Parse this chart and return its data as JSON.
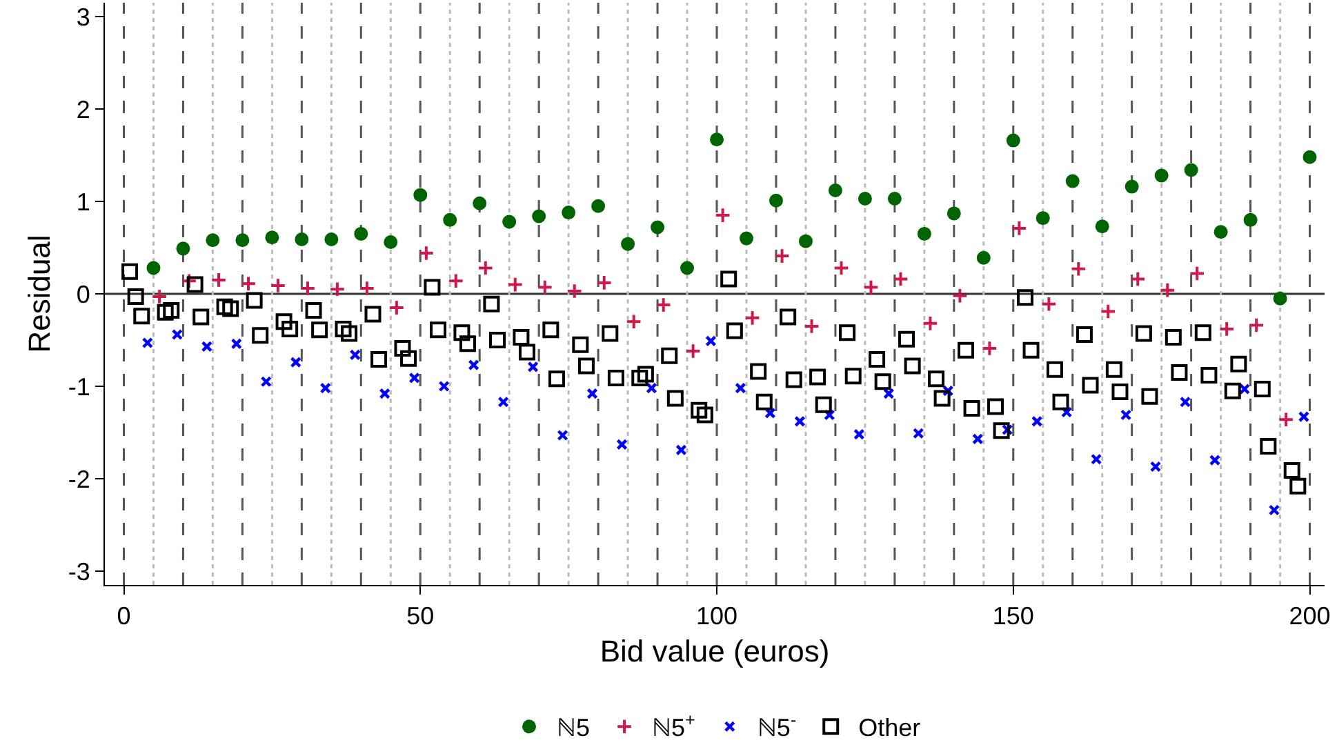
{
  "chart_data": {
    "type": "scatter",
    "xlabel": "Bid value (euros)",
    "ylabel": "Residual",
    "xlim": [
      -3.2,
      202.5
    ],
    "ylim": [
      -3.15,
      3.15
    ],
    "xticks": [
      0,
      50,
      100,
      150,
      200
    ],
    "yticks": [
      -3,
      -2,
      -1,
      0,
      1,
      2,
      3
    ],
    "grid": false,
    "legend": "bottom",
    "series": [
      {
        "name": "ℕ5",
        "color": "#006400",
        "marker": "circle",
        "x": [
          5,
          10,
          15,
          20,
          25,
          30,
          35,
          40,
          45,
          50,
          55,
          60,
          65,
          70,
          75,
          80,
          85,
          90,
          95,
          100,
          105,
          110,
          115,
          120,
          125,
          130,
          135,
          140,
          145,
          150,
          155,
          160,
          165,
          170,
          175,
          180,
          185,
          190,
          195,
          200
        ],
        "values": [
          0.28,
          0.49,
          0.58,
          0.58,
          0.61,
          0.59,
          0.59,
          0.65,
          0.56,
          1.07,
          0.8,
          0.98,
          0.78,
          0.84,
          0.88,
          0.95,
          0.54,
          0.72,
          0.28,
          1.67,
          0.6,
          1.01,
          0.57,
          1.12,
          1.03,
          1.03,
          0.65,
          0.87,
          0.39,
          1.66,
          0.82,
          1.22,
          0.73,
          1.16,
          1.28,
          1.34,
          0.67,
          0.8,
          -0.05,
          1.48
        ]
      },
      {
        "name": "ℕ5$^{+}$",
        "color": "#cc1a4a",
        "marker": "cross",
        "x": [
          6,
          11,
          16,
          21,
          26,
          31,
          36,
          41,
          46,
          51,
          56,
          61,
          66,
          71,
          76,
          81,
          86,
          91,
          96,
          101,
          106,
          111,
          116,
          121,
          126,
          131,
          136,
          141,
          146,
          151,
          156,
          161,
          166,
          171,
          176,
          181,
          186,
          191,
          196
        ],
        "values": [
          -0.03,
          0.14,
          0.15,
          0.11,
          0.09,
          0.06,
          0.05,
          0.06,
          -0.15,
          0.44,
          0.14,
          0.28,
          0.1,
          0.07,
          0.03,
          0.12,
          -0.3,
          -0.12,
          -0.62,
          0.85,
          -0.26,
          0.41,
          -0.35,
          0.28,
          0.07,
          0.16,
          -0.32,
          -0.02,
          -0.59,
          0.71,
          -0.11,
          0.27,
          -0.19,
          0.16,
          0.04,
          0.22,
          -0.38,
          -0.34,
          -1.36
        ]
      },
      {
        "name": "ℕ5$^{-}$",
        "color": "#0000ff",
        "marker": "x",
        "x": [
          4,
          9,
          14,
          19,
          24,
          29,
          34,
          39,
          44,
          49,
          54,
          59,
          64,
          69,
          74,
          79,
          84,
          89,
          94,
          99,
          104,
          109,
          114,
          119,
          124,
          129,
          134,
          139,
          144,
          149,
          154,
          159,
          164,
          169,
          174,
          179,
          184,
          189,
          194,
          199
        ],
        "values": [
          -0.53,
          -0.44,
          -0.57,
          -0.54,
          -0.95,
          -0.74,
          -1.02,
          -0.66,
          -1.08,
          -0.91,
          -1.0,
          -0.77,
          -1.17,
          -0.79,
          -1.53,
          -1.08,
          -1.63,
          -1.02,
          -1.69,
          -0.51,
          -1.02,
          -1.29,
          -1.38,
          -1.31,
          -1.52,
          -1.08,
          -1.51,
          -1.05,
          -1.57,
          -1.47,
          -1.38,
          -1.28,
          -1.79,
          -1.31,
          -1.87,
          -1.17,
          -1.8,
          -1.03,
          -2.34,
          -1.33
        ]
      },
      {
        "name": "Other",
        "color": "#000000",
        "marker": "square",
        "x": [
          1,
          2,
          3,
          7,
          8,
          12,
          13,
          17,
          18,
          22,
          23,
          27,
          28,
          32,
          33,
          37,
          38,
          42,
          43,
          47,
          48,
          52,
          53,
          57,
          58,
          62,
          63,
          67,
          68,
          72,
          73,
          77,
          78,
          82,
          83,
          87,
          88,
          92,
          93,
          97,
          98,
          102,
          103,
          107,
          108,
          112,
          113,
          117,
          118,
          122,
          123,
          127,
          128,
          132,
          133,
          137,
          138,
          142,
          143,
          147,
          148,
          152,
          153,
          157,
          158,
          162,
          163,
          167,
          168,
          172,
          173,
          177,
          178,
          182,
          183,
          187,
          188,
          192,
          193,
          197,
          198
        ],
        "values": [
          0.24,
          -0.03,
          -0.24,
          -0.2,
          -0.18,
          0.1,
          -0.25,
          -0.14,
          -0.16,
          -0.07,
          -0.45,
          -0.3,
          -0.38,
          -0.18,
          -0.39,
          -0.38,
          -0.43,
          -0.22,
          -0.71,
          -0.59,
          -0.7,
          0.07,
          -0.39,
          -0.42,
          -0.54,
          -0.11,
          -0.5,
          -0.47,
          -0.63,
          -0.39,
          -0.92,
          -0.55,
          -0.78,
          -0.43,
          -0.91,
          -0.91,
          -0.87,
          -0.67,
          -1.13,
          -1.26,
          -1.31,
          0.16,
          -0.4,
          -0.84,
          -1.17,
          -0.25,
          -0.93,
          -0.9,
          -1.2,
          -0.42,
          -0.89,
          -0.71,
          -0.95,
          -0.49,
          -0.78,
          -0.92,
          -1.13,
          -0.61,
          -1.24,
          -1.22,
          -1.48,
          -0.04,
          -0.61,
          -0.82,
          -1.17,
          -0.44,
          -0.99,
          -0.82,
          -1.06,
          -0.43,
          -1.11,
          -0.47,
          -0.85,
          -0.42,
          -0.88,
          -1.05,
          -0.76,
          -1.03,
          -1.65,
          -1.91,
          -2.08
        ]
      }
    ],
    "ref_lines": [
      {
        "axis": "y",
        "value": 0,
        "color": "#333333",
        "line_style": "solid"
      },
      {
        "axis": "x",
        "value": 0,
        "color": "#555555",
        "line_style": "dashed"
      },
      {
        "axis": "x",
        "value": 5,
        "color": "#bbbbbb",
        "line_style": "dotted"
      },
      {
        "axis": "x",
        "value": 10,
        "color": "#555555",
        "line_style": "dashed"
      },
      {
        "axis": "x",
        "value": 15,
        "color": "#bbbbbb",
        "line_style": "dotted"
      },
      {
        "axis": "x",
        "value": 20,
        "color": "#555555",
        "line_style": "dashed"
      },
      {
        "axis": "x",
        "value": 25,
        "color": "#bbbbbb",
        "line_style": "dotted"
      },
      {
        "axis": "x",
        "value": 30,
        "color": "#555555",
        "line_style": "dashed"
      },
      {
        "axis": "x",
        "value": 35,
        "color": "#bbbbbb",
        "line_style": "dotted"
      },
      {
        "axis": "x",
        "value": 40,
        "color": "#555555",
        "line_style": "dashed"
      },
      {
        "axis": "x",
        "value": 45,
        "color": "#bbbbbb",
        "line_style": "dotted"
      },
      {
        "axis": "x",
        "value": 50,
        "color": "#555555",
        "line_style": "dashed"
      },
      {
        "axis": "x",
        "value": 55,
        "color": "#bbbbbb",
        "line_style": "dotted"
      },
      {
        "axis": "x",
        "value": 60,
        "color": "#555555",
        "line_style": "dashed"
      },
      {
        "axis": "x",
        "value": 65,
        "color": "#bbbbbb",
        "line_style": "dotted"
      },
      {
        "axis": "x",
        "value": 70,
        "color": "#555555",
        "line_style": "dashed"
      },
      {
        "axis": "x",
        "value": 75,
        "color": "#bbbbbb",
        "line_style": "dotted"
      },
      {
        "axis": "x",
        "value": 80,
        "color": "#555555",
        "line_style": "dashed"
      },
      {
        "axis": "x",
        "value": 85,
        "color": "#bbbbbb",
        "line_style": "dotted"
      },
      {
        "axis": "x",
        "value": 90,
        "color": "#555555",
        "line_style": "dashed"
      },
      {
        "axis": "x",
        "value": 95,
        "color": "#bbbbbb",
        "line_style": "dotted"
      },
      {
        "axis": "x",
        "value": 100,
        "color": "#555555",
        "line_style": "dashed"
      },
      {
        "axis": "x",
        "value": 105,
        "color": "#bbbbbb",
        "line_style": "dotted"
      },
      {
        "axis": "x",
        "value": 110,
        "color": "#555555",
        "line_style": "dashed"
      },
      {
        "axis": "x",
        "value": 115,
        "color": "#bbbbbb",
        "line_style": "dotted"
      },
      {
        "axis": "x",
        "value": 120,
        "color": "#555555",
        "line_style": "dashed"
      },
      {
        "axis": "x",
        "value": 125,
        "color": "#bbbbbb",
        "line_style": "dotted"
      },
      {
        "axis": "x",
        "value": 130,
        "color": "#555555",
        "line_style": "dashed"
      },
      {
        "axis": "x",
        "value": 135,
        "color": "#bbbbbb",
        "line_style": "dotted"
      },
      {
        "axis": "x",
        "value": 140,
        "color": "#555555",
        "line_style": "dashed"
      },
      {
        "axis": "x",
        "value": 145,
        "color": "#bbbbbb",
        "line_style": "dotted"
      },
      {
        "axis": "x",
        "value": 150,
        "color": "#555555",
        "line_style": "dashed"
      },
      {
        "axis": "x",
        "value": 155,
        "color": "#bbbbbb",
        "line_style": "dotted"
      },
      {
        "axis": "x",
        "value": 160,
        "color": "#555555",
        "line_style": "dashed"
      },
      {
        "axis": "x",
        "value": 165,
        "color": "#bbbbbb",
        "line_style": "dotted"
      },
      {
        "axis": "x",
        "value": 170,
        "color": "#555555",
        "line_style": "dashed"
      },
      {
        "axis": "x",
        "value": 175,
        "color": "#bbbbbb",
        "line_style": "dotted"
      },
      {
        "axis": "x",
        "value": 180,
        "color": "#555555",
        "line_style": "dashed"
      },
      {
        "axis": "x",
        "value": 185,
        "color": "#bbbbbb",
        "line_style": "dotted"
      },
      {
        "axis": "x",
        "value": 190,
        "color": "#555555",
        "line_style": "dashed"
      },
      {
        "axis": "x",
        "value": 195,
        "color": "#bbbbbb",
        "line_style": "dotted"
      },
      {
        "axis": "x",
        "value": 200,
        "color": "#555555",
        "line_style": "dashed"
      }
    ]
  }
}
